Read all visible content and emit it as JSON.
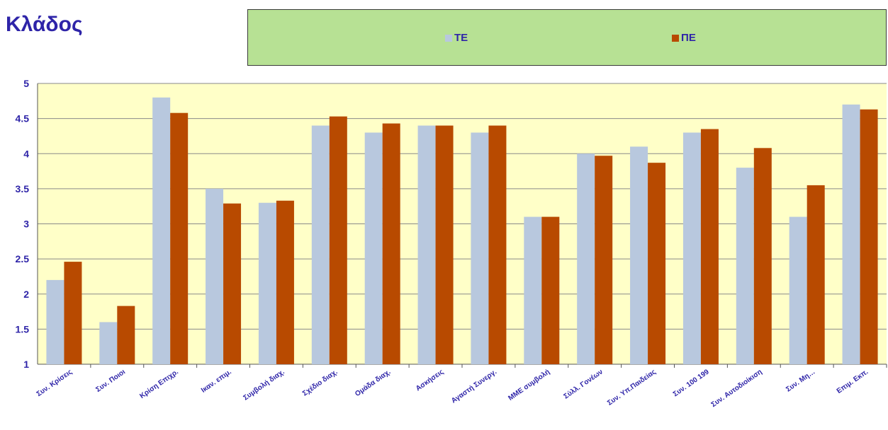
{
  "title": "Κλάδος",
  "chart_data": {
    "type": "bar",
    "categories": [
      "Συν. Κρίσεις",
      "Συν. Ποιοι",
      "Κρίση Επιχρ.",
      "Ικαν. επιμ.",
      "Συμβολή διαχ.",
      "Σχέδιο διαχ.",
      "Ομάδα διαχ.",
      "Ασκήσεις",
      "Αγαστή Συνεργ.",
      "ΜΜΕ συμβολή",
      "Σύλλ. Γονέων",
      "Συν. Υπ.Παιδείας",
      "Συν. 100 199",
      "Συν. Αυτοδιοίκιση",
      "Συν. Μη…",
      "Επιμ. Εκπ."
    ],
    "series": [
      {
        "name": "ΤΕ",
        "color": "#b8c8de",
        "values": [
          2.2,
          1.6,
          4.8,
          3.5,
          3.3,
          4.4,
          4.3,
          4.4,
          4.3,
          3.1,
          4.0,
          4.1,
          4.3,
          3.8,
          3.1,
          4.7
        ]
      },
      {
        "name": "ΠΕ",
        "color": "#b84a00",
        "values": [
          2.46,
          1.83,
          4.58,
          3.29,
          3.33,
          4.53,
          4.43,
          4.4,
          4.4,
          3.1,
          3.97,
          3.87,
          4.35,
          4.08,
          3.55,
          4.63
        ]
      }
    ],
    "yticks": [
      "1",
      "1.5",
      "2",
      "2.5",
      "3",
      "3.5",
      "4",
      "4.5",
      "5"
    ],
    "ylim": [
      1,
      5
    ],
    "grid": true,
    "legend_position": "top",
    "plot_background": "#ffffc8"
  }
}
